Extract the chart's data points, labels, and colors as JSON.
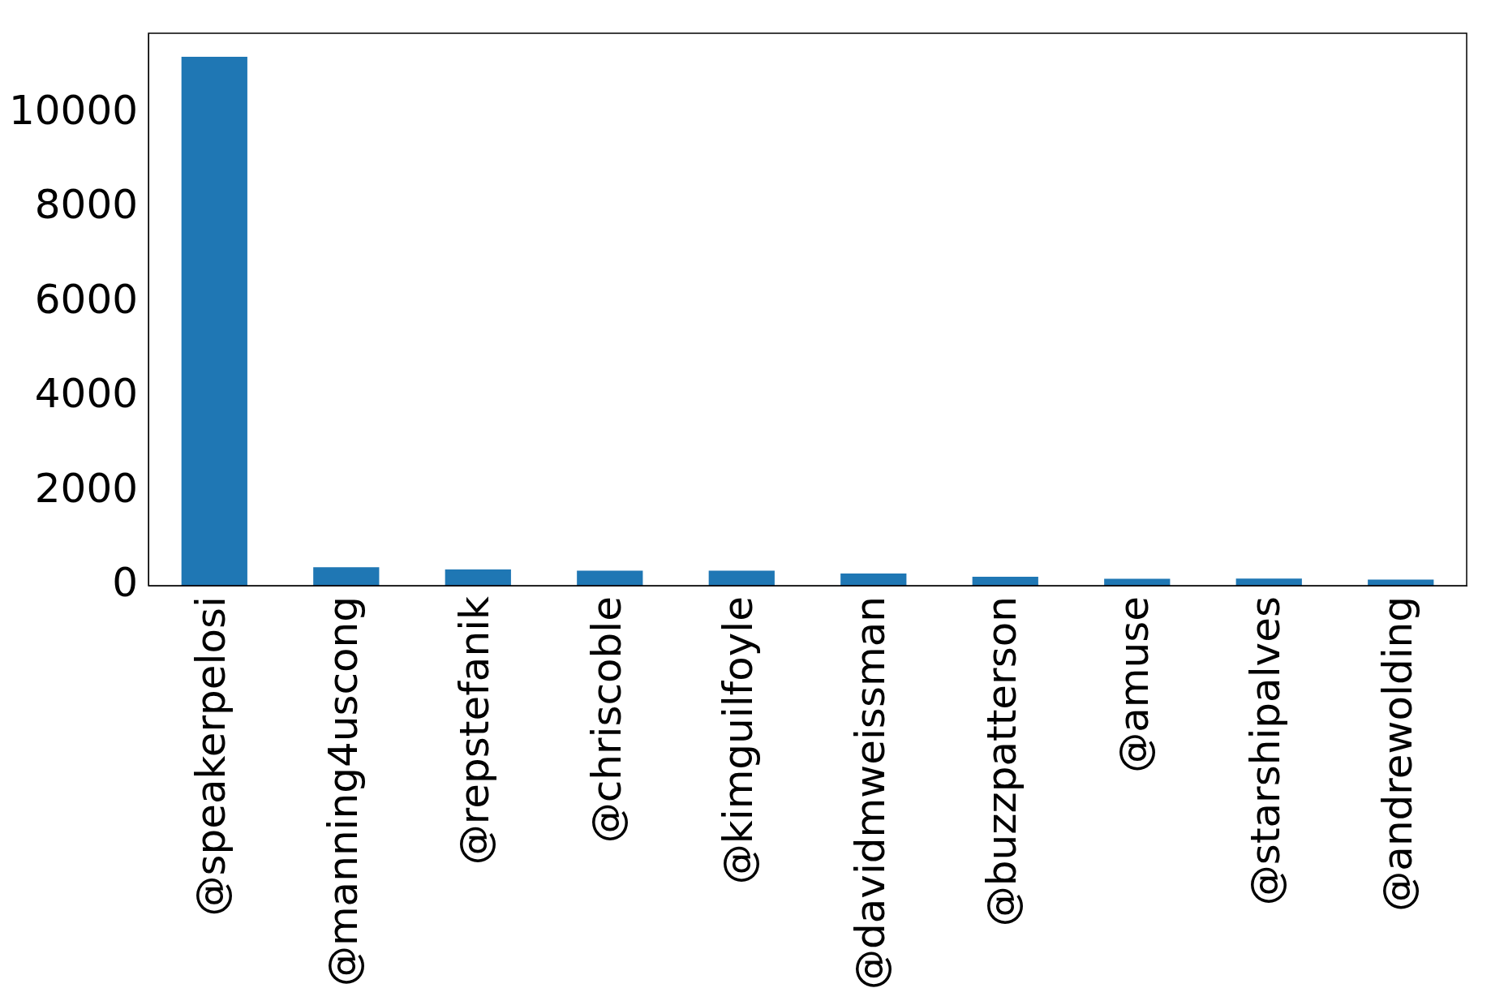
{
  "chart_data": {
    "type": "bar",
    "categories": [
      "@speakerpelosi",
      "@manning4uscong",
      "@repstefanik",
      "@chriscoble",
      "@kimguilfoyle",
      "@davidmweissman",
      "@buzzpatterson",
      "@amuse",
      "@starshipalves",
      "@andrewolding"
    ],
    "values": [
      11200,
      390,
      345,
      320,
      320,
      260,
      190,
      146,
      150,
      130
    ],
    "color": "#1f77b4",
    "ylim": [
      0,
      11700
    ],
    "yticks": [
      0,
      2000,
      4000,
      6000,
      8000,
      10000
    ],
    "grid": false,
    "legend": false
  }
}
